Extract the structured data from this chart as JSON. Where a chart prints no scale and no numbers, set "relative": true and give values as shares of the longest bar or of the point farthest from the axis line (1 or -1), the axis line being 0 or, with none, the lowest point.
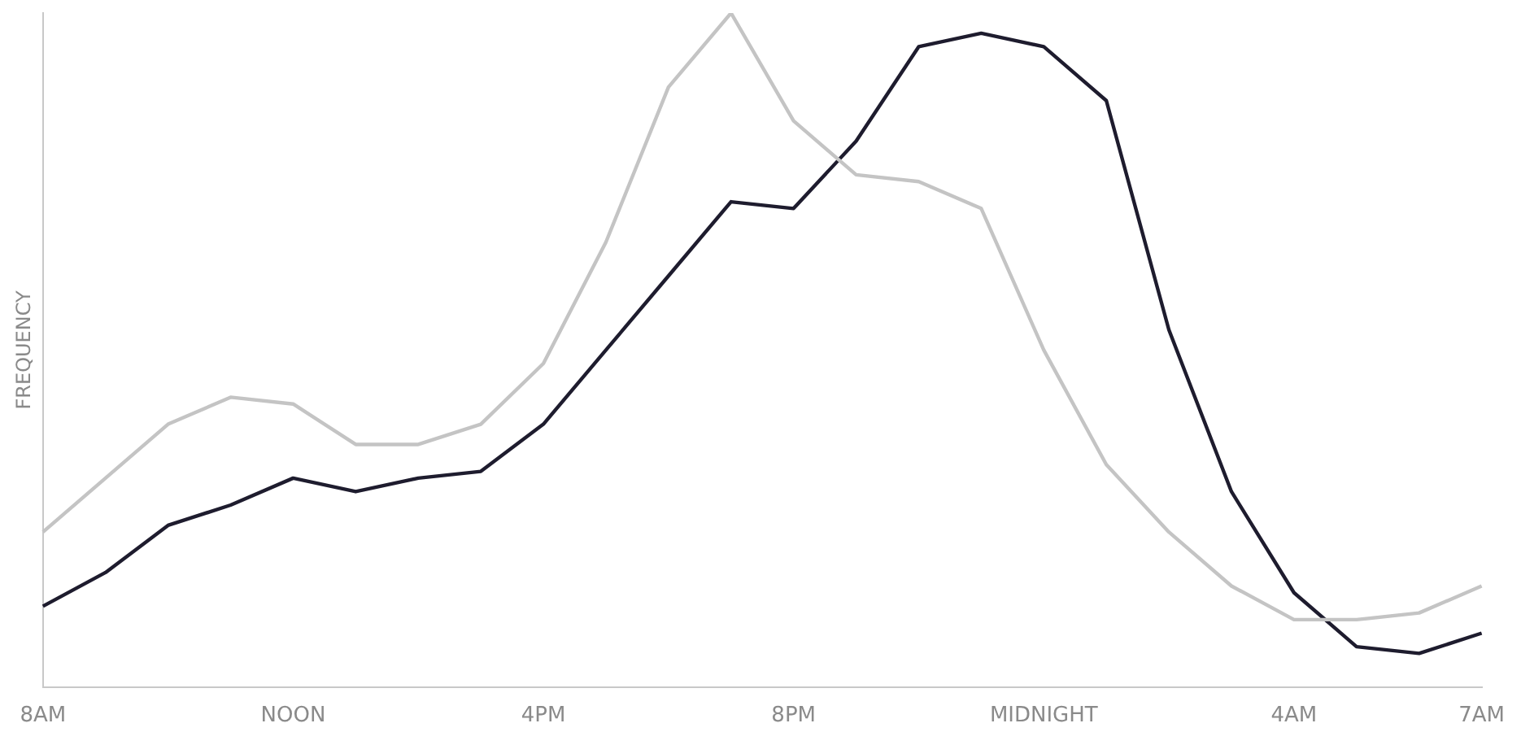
{
  "chart_data": {
    "type": "line",
    "relative": true,
    "ylabel": "FREQUENCY",
    "categories": [
      "8AM",
      null,
      null,
      null,
      "NOON",
      null,
      null,
      null,
      "4PM",
      null,
      null,
      null,
      "8PM",
      null,
      null,
      null,
      "MIDNIGHT",
      null,
      null,
      null,
      "4AM",
      null,
      null,
      "7AM"
    ],
    "series": [
      {
        "color": "#c4c4c4",
        "values": [
          0.23,
          0.31,
          0.39,
          0.43,
          0.42,
          0.36,
          0.36,
          0.39,
          0.48,
          0.66,
          0.89,
          1.0,
          0.84,
          0.76,
          0.75,
          0.71,
          0.5,
          0.33,
          0.23,
          0.15,
          0.1,
          0.1,
          0.11,
          0.15
        ]
      },
      {
        "color": "#1e1c2e",
        "values": [
          0.12,
          0.17,
          0.24,
          0.27,
          0.31,
          0.29,
          0.31,
          0.32,
          0.39,
          0.5,
          0.61,
          0.72,
          0.71,
          0.81,
          0.95,
          0.97,
          0.95,
          0.87,
          0.53,
          0.29,
          0.14,
          0.06,
          0.05,
          0.08
        ]
      }
    ],
    "grid": false,
    "legend": false,
    "marker": "none",
    "line_style": "solid"
  }
}
